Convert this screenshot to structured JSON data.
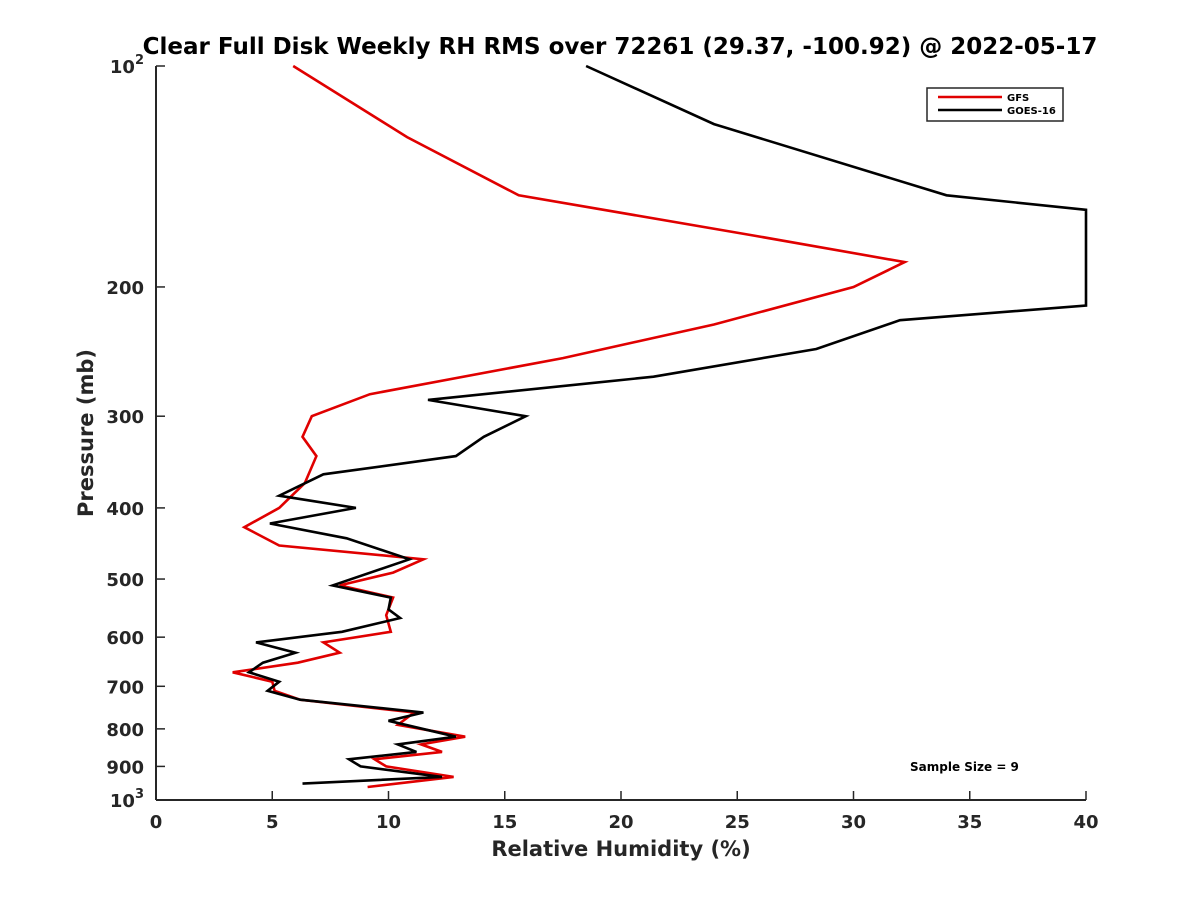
{
  "chart_data": {
    "type": "line",
    "title": "Clear Full Disk Weekly RH RMS over 72261 (29.37, -100.92) @ 2022-05-17",
    "xlabel": "Relative Humidity (%)",
    "ylabel": "Pressure (mb)",
    "xlim": [
      0,
      40
    ],
    "ylim": [
      100,
      1000
    ],
    "y_scale": "log",
    "y_reversed": true,
    "grid": false,
    "legend_placement": "top-right",
    "x_ticks": [
      "0",
      "5",
      "10",
      "15",
      "20",
      "25",
      "30",
      "35",
      "40"
    ],
    "y_ticks": [
      {
        "value": 100,
        "base": "10",
        "exp": "2"
      },
      {
        "value": 200,
        "label": "200"
      },
      {
        "value": 300,
        "label": "300"
      },
      {
        "value": 400,
        "label": "400"
      },
      {
        "value": 500,
        "label": "500"
      },
      {
        "value": 600,
        "label": "600"
      },
      {
        "value": 700,
        "label": "700"
      },
      {
        "value": 800,
        "label": "800"
      },
      {
        "value": 900,
        "label": "900"
      },
      {
        "value": 1000,
        "base": "10",
        "exp": "3"
      }
    ],
    "annotation": "Sample Size = 9",
    "series": [
      {
        "name": "GFS",
        "color": "#e00000",
        "points": [
          [
            5.9,
            100
          ],
          [
            10.8,
            125
          ],
          [
            15.6,
            150
          ],
          [
            25.6,
            170
          ],
          [
            32.2,
            185
          ],
          [
            30.0,
            200
          ],
          [
            24.0,
            225
          ],
          [
            17.5,
            250
          ],
          [
            9.2,
            280
          ],
          [
            6.7,
            300
          ],
          [
            6.3,
            320
          ],
          [
            6.9,
            340
          ],
          [
            6.4,
            370
          ],
          [
            5.3,
            400
          ],
          [
            3.8,
            425
          ],
          [
            5.3,
            450
          ],
          [
            11.5,
            470
          ],
          [
            10.2,
            490
          ],
          [
            7.9,
            510
          ],
          [
            10.2,
            530
          ],
          [
            9.9,
            560
          ],
          [
            10.1,
            590
          ],
          [
            7.2,
            610
          ],
          [
            7.9,
            630
          ],
          [
            6.1,
            650
          ],
          [
            3.3,
            670
          ],
          [
            5.0,
            690
          ],
          [
            5.1,
            710
          ],
          [
            6.2,
            730
          ],
          [
            11.1,
            760
          ],
          [
            10.4,
            790
          ],
          [
            13.3,
            820
          ],
          [
            11.4,
            840
          ],
          [
            12.3,
            860
          ],
          [
            9.4,
            880
          ],
          [
            9.9,
            900
          ],
          [
            12.8,
            930
          ],
          [
            9.1,
            960
          ]
        ]
      },
      {
        "name": "GOES-16",
        "color": "#000000",
        "points": [
          [
            18.5,
            100
          ],
          [
            24.0,
            120
          ],
          [
            34.0,
            150
          ],
          [
            40.0,
            157
          ],
          [
            40.0,
            212
          ],
          [
            32.0,
            222
          ],
          [
            28.4,
            243
          ],
          [
            21.4,
            265
          ],
          [
            11.7,
            285
          ],
          [
            15.9,
            300
          ],
          [
            14.1,
            320
          ],
          [
            12.9,
            340
          ],
          [
            7.2,
            360
          ],
          [
            5.3,
            385
          ],
          [
            8.6,
            400
          ],
          [
            4.9,
            420
          ],
          [
            8.2,
            440
          ],
          [
            10.9,
            470
          ],
          [
            7.6,
            510
          ],
          [
            10.1,
            530
          ],
          [
            10.0,
            550
          ],
          [
            10.5,
            565
          ],
          [
            8.0,
            590
          ],
          [
            4.3,
            610
          ],
          [
            6.0,
            630
          ],
          [
            4.6,
            650
          ],
          [
            4.0,
            670
          ],
          [
            5.3,
            690
          ],
          [
            4.8,
            710
          ],
          [
            6.2,
            730
          ],
          [
            11.5,
            760
          ],
          [
            10.0,
            780
          ],
          [
            12.9,
            820
          ],
          [
            10.4,
            840
          ],
          [
            11.2,
            860
          ],
          [
            8.3,
            880
          ],
          [
            8.8,
            900
          ],
          [
            12.3,
            930
          ],
          [
            6.3,
            950
          ]
        ]
      }
    ]
  }
}
